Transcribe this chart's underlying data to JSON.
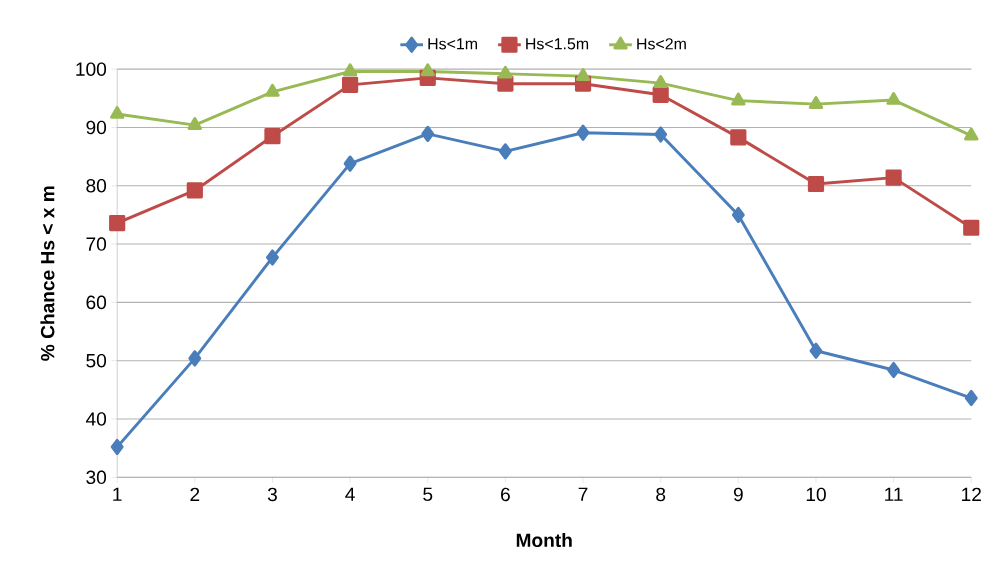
{
  "chart_data": {
    "type": "line",
    "xlabel": "Month",
    "ylabel": "% Chance Hs < x m",
    "x": [
      1,
      2,
      3,
      4,
      5,
      6,
      7,
      8,
      9,
      10,
      11,
      12
    ],
    "series": [
      {
        "name": "Hs<1m",
        "color": "#4a7ebb",
        "marker": "diamond",
        "values": [
          35.2,
          50.4,
          67.7,
          83.8,
          88.9,
          85.9,
          89.1,
          88.8,
          75.0,
          51.7,
          48.4,
          43.6
        ]
      },
      {
        "name": "Hs<1.5m",
        "color": "#be4b48",
        "marker": "square",
        "values": [
          73.6,
          79.2,
          88.5,
          97.3,
          98.5,
          97.5,
          97.5,
          95.6,
          88.3,
          80.3,
          81.4,
          72.8
        ]
      },
      {
        "name": "Hs<2m",
        "color": "#98b954",
        "marker": "triangle",
        "values": [
          92.3,
          90.4,
          96.1,
          99.6,
          99.6,
          99.2,
          98.8,
          97.6,
          94.6,
          94.0,
          94.7,
          88.6
        ]
      }
    ],
    "xlim": [
      1,
      12
    ],
    "xticks": [
      1,
      2,
      3,
      4,
      5,
      6,
      7,
      8,
      9,
      10,
      11,
      12
    ],
    "ylim": [
      30,
      100
    ],
    "yticks": [
      30,
      40,
      50,
      60,
      70,
      80,
      90,
      100
    ],
    "grid": "y",
    "legend": "top",
    "line_style": "solid"
  }
}
